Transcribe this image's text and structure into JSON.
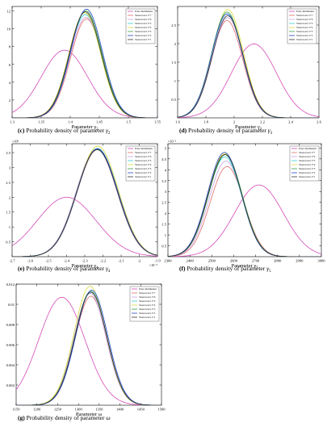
{
  "chart_data": [
    {
      "type": "line",
      "panel": "c",
      "caption_letter": "(c)",
      "caption_text": "Probability density of parameter",
      "caption_symbol": "γ",
      "caption_sub": "2",
      "xlabel": "Parameter γ",
      "xlabel_sub": "2",
      "xlim": [
        1.3,
        1.55
      ],
      "ylim": [
        0,
        12.5
      ],
      "xticks": [
        1.3,
        1.35,
        1.4,
        1.45,
        1.5,
        1.55
      ],
      "xtick_labels": [
        "1.3",
        "1.35",
        "1.4",
        "1.45",
        "1.5",
        "1.55"
      ],
      "yticks": [
        2,
        4,
        6,
        8,
        10,
        12
      ],
      "ytick_labels": [
        "2",
        "4",
        "6",
        "8",
        "10",
        "12"
      ],
      "legend": [
        "Prior distribution",
        "Stress level 1+7",
        "Stress level 1+6",
        "Stress level 1+5",
        "Stress level 1+4",
        "Stress level 1+3",
        "Stress level 1+2",
        "Stress level 1+1"
      ],
      "series": [
        {
          "mean": 1.39,
          "peak": 7.6,
          "color": "#d44ab8"
        },
        {
          "mean": 1.428,
          "peak": 11.1,
          "color": "#e06c6c"
        },
        {
          "mean": 1.427,
          "peak": 11.3,
          "color": "#c8a0e6"
        },
        {
          "mean": 1.426,
          "peak": 11.6,
          "color": "#2fcfcf"
        },
        {
          "mean": 1.425,
          "peak": 11.8,
          "color": "#d9d93a"
        },
        {
          "mean": 1.427,
          "peak": 12.0,
          "color": "#37a04a"
        },
        {
          "mean": 1.428,
          "peak": 12.2,
          "color": "#2447c9"
        },
        {
          "mean": 1.426,
          "peak": 11.9,
          "color": "#333333"
        }
      ]
    },
    {
      "type": "line",
      "panel": "d",
      "caption_letter": "(d)",
      "caption_text": "Probability density of parameter",
      "caption_symbol": "γ",
      "caption_sub": "3",
      "xlabel": "Parameter γ",
      "xlabel_sub": "3",
      "xlim": [
        1.6,
        2.6
      ],
      "ylim": [
        0,
        3.0
      ],
      "xticks": [
        1.6,
        1.8,
        2.0,
        2.2,
        2.4,
        2.6
      ],
      "xtick_labels": [
        "1.6",
        "1.8",
        "2",
        "2.2",
        "2.4",
        "2.6"
      ],
      "yticks": [
        0.5,
        1.0,
        1.5,
        2.0,
        2.5
      ],
      "ytick_labels": [
        "0.5",
        "1",
        "1.5",
        "2",
        "2.5"
      ],
      "legend": [
        "Prior distribution",
        "Stress level 1+7",
        "Stress level 1+6",
        "Stress level 1+5",
        "Stress level 1+4",
        "Stress level 1+3",
        "Stress level 1+2",
        "Stress level 1+1"
      ],
      "series": [
        {
          "mean": 2.14,
          "peak": 1.99,
          "color": "#d44ab8"
        },
        {
          "mean": 1.95,
          "peak": 2.62,
          "color": "#e06c6c"
        },
        {
          "mean": 1.955,
          "peak": 2.7,
          "color": "#c8a0e6"
        },
        {
          "mean": 1.95,
          "peak": 2.8,
          "color": "#2fcfcf"
        },
        {
          "mean": 1.955,
          "peak": 2.92,
          "color": "#d9d93a"
        },
        {
          "mean": 1.95,
          "peak": 2.85,
          "color": "#37a04a"
        },
        {
          "mean": 1.95,
          "peak": 2.8,
          "color": "#2447c9"
        },
        {
          "mean": 1.955,
          "peak": 2.75,
          "color": "#333333"
        }
      ]
    },
    {
      "type": "line",
      "panel": "e",
      "caption_letter": "(e)",
      "caption_text": "Probability density of parameter",
      "caption_symbol": "γ",
      "caption_sub": "4",
      "xlabel": "Parameter γ",
      "xlabel_sub": "4",
      "exp_y": "×10⁵",
      "exp_x": "×10⁻⁵",
      "xlim": [
        -2.7,
        -1.9
      ],
      "ylim": [
        0,
        3.8
      ],
      "xticks": [
        -2.7,
        -2.6,
        -2.5,
        -2.4,
        -2.3,
        -2.2,
        -2.1,
        -2.0,
        -1.9
      ],
      "xtick_labels": [
        "-2.7",
        "-2.6",
        "-2.5",
        "-2.4",
        "-2.3",
        "-2.2",
        "-2.1",
        "-2",
        "-1.9"
      ],
      "yticks": [
        0.5,
        1.0,
        1.5,
        2.0,
        2.5,
        3.0,
        3.5
      ],
      "ytick_labels": [
        "0.5",
        "1",
        "1.5",
        "2",
        "2.5",
        "3",
        "3.5"
      ],
      "legend": [
        "Prior distribution",
        "Stress level 1+7",
        "Stress level 1+6",
        "Stress level 1+5",
        "Stress level 1+4",
        "Stress level 1+3",
        "Stress level 1+2",
        "Stress level 1+1"
      ],
      "series": [
        {
          "mean": -2.4,
          "peak": 2.0,
          "color": "#d44ab8"
        },
        {
          "mean": -2.23,
          "peak": 3.6,
          "color": "#e06c6c"
        },
        {
          "mean": -2.235,
          "peak": 3.62,
          "color": "#c8a0e6"
        },
        {
          "mean": -2.23,
          "peak": 3.64,
          "color": "#2fcfcf"
        },
        {
          "mean": -2.228,
          "peak": 3.72,
          "color": "#d9d93a"
        },
        {
          "mean": -2.232,
          "peak": 3.62,
          "color": "#37a04a"
        },
        {
          "mean": -2.23,
          "peak": 3.63,
          "color": "#2447c9"
        },
        {
          "mean": -2.232,
          "peak": 3.6,
          "color": "#333333"
        }
      ]
    },
    {
      "type": "line",
      "panel": "f",
      "caption_letter": "(f)",
      "caption_text": "Probability density of parameter",
      "caption_symbol": "γ",
      "caption_sub": "5",
      "xlabel": "Parameter γ",
      "xlabel_sub": "5",
      "exp_y": "×10⁻³",
      "xlim": [
        2300,
        3000
      ],
      "ylim": [
        0,
        5.2
      ],
      "xticks": [
        2300,
        2400,
        2500,
        2600,
        2700,
        2800,
        2900,
        3000
      ],
      "xtick_labels": [
        "2300",
        "2400",
        "2500",
        "2600",
        "2700",
        "2800",
        "2900",
        "3000"
      ],
      "yticks": [
        0.5,
        1.0,
        1.5,
        2.0,
        2.5,
        3.0,
        3.5,
        4.0,
        4.5,
        5.0
      ],
      "ytick_labels": [
        "0.5",
        "1",
        "1.5",
        "2",
        "2.5",
        "3",
        "3.5",
        "4",
        "4.5",
        "5"
      ],
      "legend": [
        "Prior distribution",
        "Stress level 1+7",
        "Stress level 1+6",
        "Stress level 1+5",
        "Stress level 1+4",
        "Stress level 1+3",
        "Stress level 1+2",
        "Stress level 1+1"
      ],
      "series": [
        {
          "mean": 2715,
          "peak": 3.3,
          "color": "#d44ab8"
        },
        {
          "mean": 2570,
          "peak": 4.15,
          "color": "#e06c6c"
        },
        {
          "mean": 2565,
          "peak": 4.4,
          "color": "#c8a0e6"
        },
        {
          "mean": 2560,
          "peak": 4.6,
          "color": "#2fcfcf"
        },
        {
          "mean": 2560,
          "peak": 4.75,
          "color": "#d9d93a"
        },
        {
          "mean": 2562,
          "peak": 4.7,
          "color": "#37a04a"
        },
        {
          "mean": 2558,
          "peak": 4.8,
          "color": "#2447c9"
        },
        {
          "mean": 2560,
          "peak": 4.7,
          "color": "#333333"
        }
      ]
    },
    {
      "type": "line",
      "panel": "g",
      "caption_letter": "(g)",
      "caption_text": "Probability density of parameter",
      "caption_symbol": "ω",
      "caption_sub": "",
      "xlabel": "Parameter ω",
      "xlabel_sub": "",
      "xlim": [
        1150,
        1500
      ],
      "ylim": [
        0,
        0.012
      ],
      "xticks": [
        1150,
        1200,
        1250,
        1300,
        1350,
        1400,
        1450,
        1500
      ],
      "xtick_labels": [
        "1150",
        "1200",
        "1250",
        "1300",
        "1350",
        "1400",
        "1450",
        "1500"
      ],
      "yticks": [
        0.002,
        0.004,
        0.006,
        0.008,
        0.01,
        0.012
      ],
      "ytick_labels": [
        "0.002",
        "0.004",
        "0.006",
        "0.008",
        "0.01",
        "0.012"
      ],
      "legend": [
        "Prior distribution",
        "Stress level 1+7",
        "Stress level 1+6",
        "Stress level 1+5",
        "Stress level 1+4",
        "Stress level 1+3",
        "Stress level 1+2",
        "Stress level 1+1"
      ],
      "series": [
        {
          "mean": 1260,
          "peak": 0.0107,
          "color": "#d44ab8"
        },
        {
          "mean": 1330,
          "peak": 0.0108,
          "color": "#e06c6c"
        },
        {
          "mean": 1328,
          "peak": 0.0111,
          "color": "#c8a0e6"
        },
        {
          "mean": 1330,
          "peak": 0.0112,
          "color": "#2fcfcf"
        },
        {
          "mean": 1328,
          "peak": 0.0118,
          "color": "#d9d93a"
        },
        {
          "mean": 1330,
          "peak": 0.0113,
          "color": "#37a04a"
        },
        {
          "mean": 1332,
          "peak": 0.0114,
          "color": "#2447c9"
        },
        {
          "mean": 1330,
          "peak": 0.0112,
          "color": "#333333"
        }
      ]
    }
  ]
}
